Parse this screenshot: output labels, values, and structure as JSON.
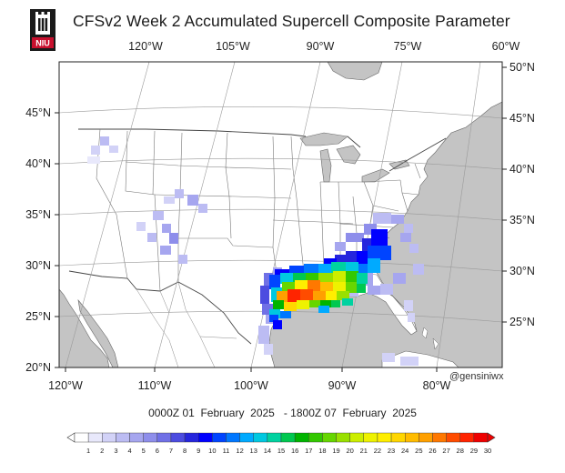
{
  "title": "CFSv2 Week 2 Accumulated Supercell Composite Parameter",
  "logo_text": "NIU",
  "top_lon_labels": [
    "120°W",
    "105°W",
    "90°W",
    "75°W",
    "60°W"
  ],
  "bottom_lon_labels": [
    "120°W",
    "110°W",
    "100°W",
    "90°W",
    "80°W"
  ],
  "left_lat_labels": [
    "45°N",
    "40°N",
    "35°N",
    "30°N",
    "25°N",
    "20°N"
  ],
  "right_lat_labels": [
    "50°N",
    "45°N",
    "40°N",
    "35°N",
    "30°N",
    "25°N"
  ],
  "credit": "@gensiniwx",
  "valid_range": "0000Z 01  February  2025   - 1800Z 07  February  2025",
  "colorbar": {
    "labels": [
      "1",
      "2",
      "3",
      "4",
      "5",
      "6",
      "7",
      "8",
      "9",
      "10",
      "11",
      "12",
      "13",
      "14",
      "15",
      "16",
      "17",
      "18",
      "19",
      "20",
      "21",
      "22",
      "23",
      "24",
      "25",
      "26",
      "27",
      "28",
      "29",
      "30"
    ],
    "colors": [
      "#ffffff",
      "#e8e8fb",
      "#d2d2f7",
      "#bcbcf3",
      "#a6a6ef",
      "#8e8eeb",
      "#7070e6",
      "#4c4ce0",
      "#2626dd",
      "#0000ff",
      "#0044ff",
      "#0077ff",
      "#00aaff",
      "#00c8e0",
      "#00d2a0",
      "#00c850",
      "#00b400",
      "#33c800",
      "#66d600",
      "#99e000",
      "#ccee00",
      "#eef200",
      "#ffee00",
      "#ffd600",
      "#ffbc00",
      "#ffa000",
      "#ff7800",
      "#ff4c00",
      "#ff2400",
      "#ee0000"
    ]
  },
  "colors": {
    "land": "#ffffff",
    "ocean_and_foreign_land": "#c4c4c4",
    "borders": "#555555"
  }
}
